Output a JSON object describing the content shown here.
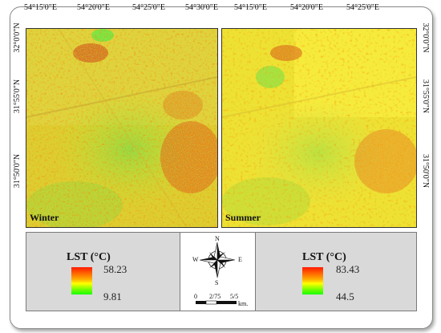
{
  "ticks": {
    "winter_top": [
      "54°15'0\"E",
      "54°20'0\"E",
      "54°25'0\"E",
      "54°30'0\"E"
    ],
    "summer_top": [
      "54°15'0\"E",
      "54°20'0\"E",
      "54°25'0\"E"
    ],
    "winter_left": [
      "32°0'0\"N",
      "31°55'0\"N",
      "31°50'0\"N"
    ],
    "summer_right": [
      "32°0'0\"N",
      "31°55'0\"N",
      "31°50'0\"N"
    ]
  },
  "maps": {
    "winter": {
      "label": "Winter"
    },
    "summer": {
      "label": "Summer"
    }
  },
  "legend": {
    "winter": {
      "title": "LST (°C)",
      "max": "58.23",
      "min": "9.81"
    },
    "summer": {
      "title": "LST (°C)",
      "max": "83.43",
      "min": "44.5"
    }
  },
  "compass": {
    "n": "N",
    "s": "S",
    "e": "E",
    "w": "W"
  },
  "scale": {
    "labels": [
      "0",
      "2/75",
      "5/5"
    ],
    "unit": "km."
  }
}
